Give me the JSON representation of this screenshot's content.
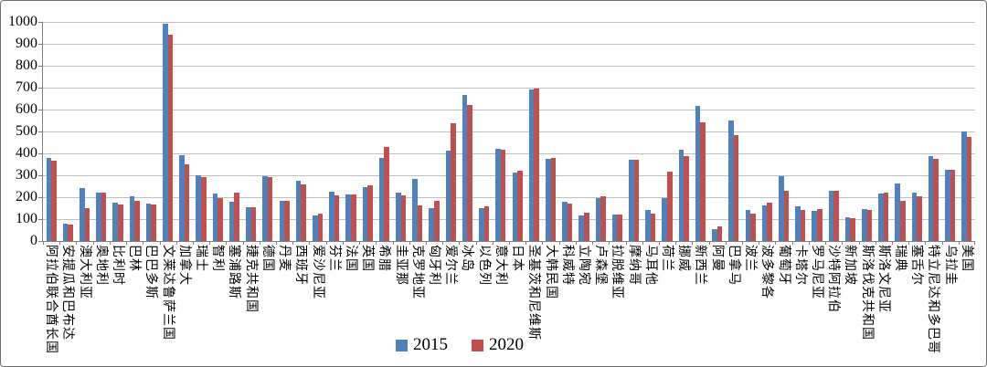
{
  "chart_data": {
    "type": "bar",
    "title": "",
    "xlabel": "",
    "ylabel": "",
    "ylim": [
      0,
      1000
    ],
    "ytick_step": 100,
    "grid": true,
    "legend_position": "bottom",
    "categories": [
      "阿拉伯联合酋长国",
      "安提瓜和巴布达",
      "澳大利亚",
      "奥地利",
      "比利时",
      "巴林",
      "巴巴多斯",
      "文莱达鲁萨兰国",
      "加拿大",
      "瑞士",
      "智利",
      "塞浦路斯",
      "捷克共和国",
      "德国",
      "丹麦",
      "西班牙",
      "爱沙尼亚",
      "芬兰",
      "法国",
      "英国",
      "希腊",
      "圭亚那",
      "克罗地亚",
      "匈牙利",
      "爱尔兰",
      "冰岛",
      "以色列",
      "意大利",
      "日本",
      "圣基茨和尼维斯",
      "大韩民国",
      "科威特",
      "立陶宛",
      "卢森堡",
      "拉脱维亚",
      "摩纳哥",
      "马耳他",
      "荷兰",
      "挪威",
      "新西兰",
      "阿曼",
      "巴拿马",
      "波兰",
      "波多黎各",
      "葡萄牙",
      "卡塔尔",
      "罗马尼亚",
      "沙特阿拉伯",
      "新加坡",
      "斯洛伐克共和国",
      "斯洛文尼亚",
      "瑞典",
      "塞舌尔",
      "特立尼达和多巴哥",
      "乌拉圭",
      "美国"
    ],
    "series": [
      {
        "name": "2015",
        "color": "#4F81BD",
        "values": [
          378,
          80,
          242,
          223,
          177,
          205,
          170,
          990,
          390,
          300,
          215,
          178,
          155,
          298,
          183,
          275,
          118,
          226,
          212,
          248,
          378,
          220,
          283,
          151,
          411,
          665,
          150,
          420,
          313,
          690,
          375,
          180,
          115,
          198,
          122,
          371,
          140,
          194,
          418,
          615,
          55,
          550,
          143,
          164,
          298,
          159,
          138,
          228,
          109,
          145,
          217,
          263,
          219,
          388,
          325,
          499
        ]
      },
      {
        "name": "2020",
        "color": "#C0504D",
        "values": [
          368,
          76,
          152,
          219,
          168,
          182,
          165,
          940,
          350,
          293,
          198,
          223,
          155,
          293,
          185,
          260,
          126,
          208,
          212,
          254,
          430,
          209,
          162,
          183,
          539,
          623,
          160,
          417,
          320,
          698,
          378,
          172,
          130,
          205,
          122,
          373,
          127,
          316,
          388,
          541,
          65,
          483,
          126,
          177,
          230,
          141,
          148,
          228,
          104,
          143,
          222,
          183,
          205,
          374,
          325,
          477
        ]
      }
    ]
  },
  "colors": {
    "series_2015": "#4F81BD",
    "series_2020": "#C0504D",
    "gridline": "#BFBFBF",
    "axis": "#808080",
    "text": "#000000",
    "frame_border": "#6F6F6F",
    "background": "#FFFFFF"
  },
  "legend": {
    "items": [
      {
        "label": "2015",
        "color": "#4F81BD"
      },
      {
        "label": "2020",
        "color": "#C0504D"
      }
    ]
  }
}
